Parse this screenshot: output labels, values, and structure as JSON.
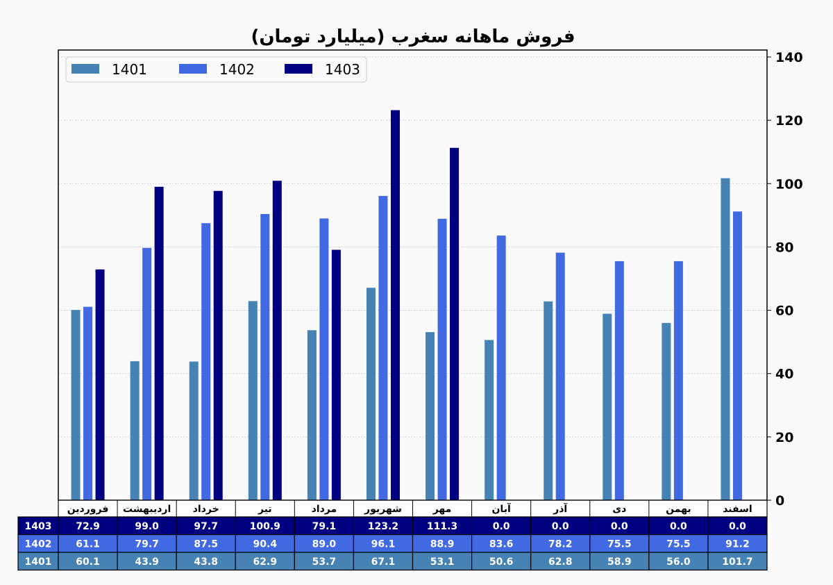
{
  "chart_data": {
    "type": "bar",
    "title": "فروش ماهانه سغرب (میلیارد تومان)",
    "xlabel": "",
    "ylabel": "",
    "ylim": [
      0,
      140
    ],
    "yticks": [
      0,
      20,
      40,
      60,
      80,
      100,
      120,
      140
    ],
    "grid": true,
    "legend_position": "top-left",
    "categories": [
      "فروردین",
      "اردیبهشت",
      "خرداد",
      "تیر",
      "مرداد",
      "شهریور",
      "مهر",
      "آبان",
      "آذر",
      "دی",
      "بهمن",
      "اسفند"
    ],
    "series": [
      {
        "name": "1401",
        "color": "#4682b4",
        "values": [
          60.1,
          43.9,
          43.8,
          62.9,
          53.7,
          67.1,
          53.1,
          50.6,
          62.8,
          58.9,
          56.0,
          101.7
        ]
      },
      {
        "name": "1402",
        "color": "#4169e1",
        "values": [
          61.1,
          79.7,
          87.5,
          90.4,
          89.0,
          96.1,
          88.9,
          83.6,
          78.2,
          75.5,
          75.5,
          91.2
        ]
      },
      {
        "name": "1403",
        "color": "#000080",
        "values": [
          72.9,
          99.0,
          97.7,
          100.9,
          79.1,
          123.2,
          111.3,
          0.0,
          0.0,
          0.0,
          0.0,
          0.0
        ]
      }
    ],
    "table": {
      "row_order": [
        "1403",
        "1402",
        "1401"
      ],
      "cells": {
        "1403": [
          "72.9",
          "99.0",
          "97.7",
          "100.9",
          "79.1",
          "123.2",
          "111.3",
          "0.0",
          "0.0",
          "0.0",
          "0.0",
          "0.0"
        ],
        "1402": [
          "61.1",
          "79.7",
          "87.5",
          "90.4",
          "89.0",
          "96.1",
          "88.9",
          "83.6",
          "78.2",
          "75.5",
          "75.5",
          "91.2"
        ],
        "1401": [
          "60.1",
          "43.9",
          "43.8",
          "62.9",
          "53.7",
          "67.1",
          "53.1",
          "50.6",
          "62.8",
          "58.9",
          "56.0",
          "101.7"
        ]
      }
    }
  }
}
